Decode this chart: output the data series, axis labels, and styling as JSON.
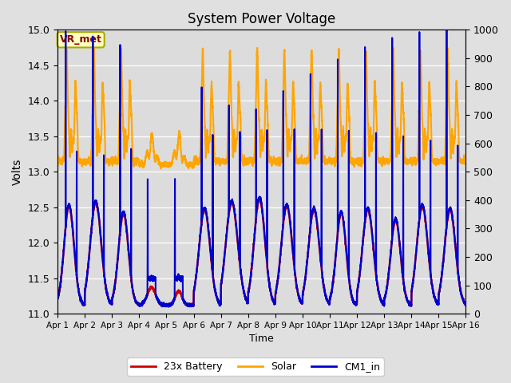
{
  "title": "System Power Voltage",
  "xlabel": "Time",
  "ylabel": "Volts",
  "ylim_left": [
    11.0,
    15.0
  ],
  "ylim_right": [
    0,
    1000
  ],
  "yticks_left": [
    11.0,
    11.5,
    12.0,
    12.5,
    13.0,
    13.5,
    14.0,
    14.5,
    15.0
  ],
  "yticks_right": [
    0,
    100,
    200,
    300,
    400,
    500,
    600,
    700,
    800,
    900,
    1000
  ],
  "xtick_labels": [
    "Apr 1",
    "Apr 2",
    "Apr 3",
    "Apr 4",
    "Apr 5",
    "Apr 6",
    "Apr 7",
    "Apr 8",
    "Apr 9",
    "Apr 10",
    "Apr 11",
    "Apr 12",
    "Apr 13",
    "Apr 14",
    "Apr 15",
    "Apr 16"
  ],
  "background_color": "#e0e0e0",
  "plot_bg_color": "#dcdcdc",
  "grid_color": "#ffffff",
  "annotation_text": "VR_met",
  "annotation_color": "#8b0000",
  "annotation_bg": "#ffffc0",
  "annotation_edge": "#aaaa00",
  "series": {
    "battery": {
      "label": "23x Battery",
      "color": "#cc0000",
      "linewidth": 1.8
    },
    "solar": {
      "label": "Solar",
      "color": "#ffa500",
      "linewidth": 1.5
    },
    "cm1": {
      "label": "CM1_in",
      "color": "#0000cc",
      "linewidth": 1.5
    }
  }
}
